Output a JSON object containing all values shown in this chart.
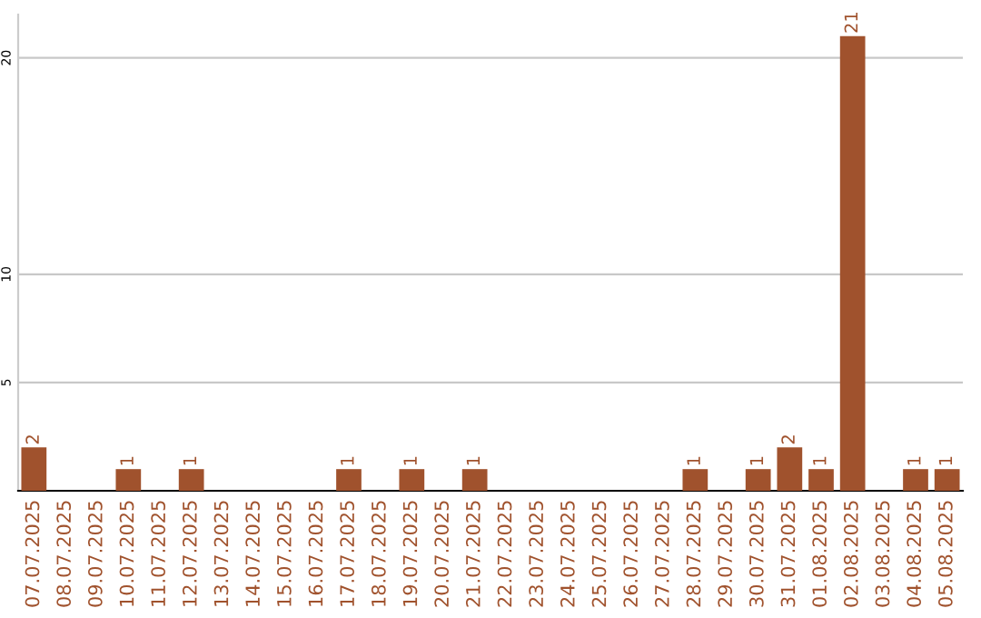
{
  "chart_data": {
    "type": "bar",
    "categories": [
      "07.07.2025",
      "08.07.2025",
      "09.07.2025",
      "10.07.2025",
      "11.07.2025",
      "12.07.2025",
      "13.07.2025",
      "14.07.2025",
      "15.07.2025",
      "16.07.2025",
      "17.07.2025",
      "18.07.2025",
      "19.07.2025",
      "20.07.2025",
      "21.07.2025",
      "22.07.2025",
      "23.07.2025",
      "24.07.2025",
      "25.07.2025",
      "26.07.2025",
      "27.07.2025",
      "28.07.2025",
      "29.07.2025",
      "30.07.2025",
      "31.07.2025",
      "01.08.2025",
      "02.08.2025",
      "03.08.2025",
      "04.08.2025",
      "05.08.2025"
    ],
    "values": [
      2,
      0,
      0,
      1,
      0,
      1,
      0,
      0,
      0,
      0,
      1,
      0,
      1,
      0,
      1,
      0,
      0,
      0,
      0,
      0,
      0,
      1,
      0,
      1,
      2,
      1,
      21,
      0,
      1,
      1
    ],
    "value_labels": [
      "2",
      null,
      null,
      "1",
      null,
      "1",
      null,
      null,
      null,
      null,
      "1",
      null,
      "1",
      null,
      "1",
      null,
      null,
      null,
      null,
      null,
      null,
      "1",
      null,
      "1",
      "2",
      "1",
      "21",
      null,
      "1",
      "1"
    ],
    "color": "#a0522d",
    "ylim": [
      0,
      22
    ],
    "yticks": [
      5,
      10,
      20
    ],
    "grid": "y"
  }
}
